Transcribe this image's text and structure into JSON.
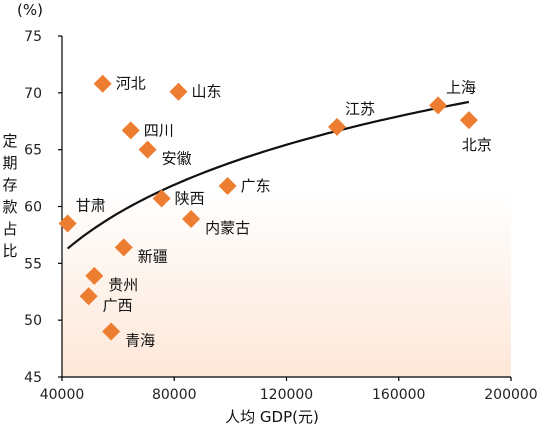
{
  "chart_data": {
    "type": "scatter",
    "x_label": "人均 GDP(元)",
    "y_unit": "(%)",
    "y_label": "定期存款占比",
    "xlim": [
      40000,
      200000
    ],
    "ylim": [
      45,
      75
    ],
    "x_ticks": [
      "40000",
      "80000",
      "120000",
      "160000",
      "200000"
    ],
    "y_ticks": [
      "45",
      "50",
      "55",
      "60",
      "65",
      "70",
      "75"
    ],
    "marker_color": "#ED7D31",
    "background_gradient": [
      "#FFFFFF",
      "#FDE7D8"
    ],
    "trendline": {
      "type": "logarithmic",
      "x_range": [
        42000,
        185000
      ],
      "y_range": [
        56.3,
        69.2
      ]
    },
    "points": [
      {
        "name": "河北",
        "x": 54500,
        "y": 70.8,
        "label_pos": "right"
      },
      {
        "name": "山东",
        "x": 81500,
        "y": 70.1,
        "label_pos": "right"
      },
      {
        "name": "四川",
        "x": 64500,
        "y": 66.7,
        "label_pos": "right"
      },
      {
        "name": "安徽",
        "x": 70500,
        "y": 65.0,
        "label_pos": "right-below"
      },
      {
        "name": "江苏",
        "x": 138000,
        "y": 67.0,
        "label_pos": "above-right"
      },
      {
        "name": "上海",
        "x": 174000,
        "y": 68.9,
        "label_pos": "above-right"
      },
      {
        "name": "北京",
        "x": 185000,
        "y": 67.6,
        "label_pos": "below"
      },
      {
        "name": "广东",
        "x": 99000,
        "y": 61.8,
        "label_pos": "right"
      },
      {
        "name": "陕西",
        "x": 75500,
        "y": 60.7,
        "label_pos": "right"
      },
      {
        "name": "内蒙古",
        "x": 86000,
        "y": 58.9,
        "label_pos": "right-below"
      },
      {
        "name": "甘肃",
        "x": 42000,
        "y": 58.5,
        "label_pos": "above-right"
      },
      {
        "name": "新疆",
        "x": 62000,
        "y": 56.4,
        "label_pos": "right-below"
      },
      {
        "name": "贵州",
        "x": 51500,
        "y": 53.9,
        "label_pos": "right-below"
      },
      {
        "name": "广西",
        "x": 49500,
        "y": 52.1,
        "label_pos": "right-below"
      },
      {
        "name": "青海",
        "x": 57500,
        "y": 49.0,
        "label_pos": "right-below"
      }
    ]
  }
}
